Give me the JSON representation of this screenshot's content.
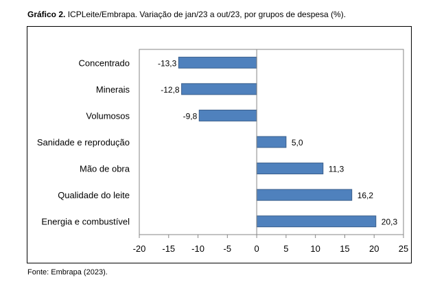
{
  "caption": {
    "title_bold": "Gráfico 2.",
    "title_rest": " ICPLeite/Embrapa. Variação de jan/23 a out/23, por grupos de despesa (%).",
    "source": "Fonte: Embrapa (2023)."
  },
  "chart_data": {
    "type": "bar",
    "orientation": "horizontal",
    "categories": [
      "Concentrado",
      "Minerais",
      "Volumosos",
      "Sanidade e reprodução",
      "Mão de obra",
      "Qualidade do leite",
      "Energia e combustível"
    ],
    "values": [
      -13.3,
      -12.8,
      -9.8,
      5.0,
      11.3,
      16.2,
      20.3
    ],
    "data_labels": [
      "-13,3",
      "-12,8",
      "-9,8",
      "5,0",
      "11,3",
      "16,2",
      "20,3"
    ],
    "xlim": [
      -20,
      25
    ],
    "xticks": [
      -20,
      -15,
      -10,
      -5,
      0,
      5,
      10,
      15,
      20,
      25
    ],
    "xtick_labels": [
      "-20",
      "-15",
      "-10",
      "-5",
      "0",
      "5",
      "10",
      "15",
      "20",
      "25"
    ],
    "grid": false,
    "legend": "none",
    "bar_color": "#4F81BD",
    "bar_border_color": "#385D8A"
  }
}
